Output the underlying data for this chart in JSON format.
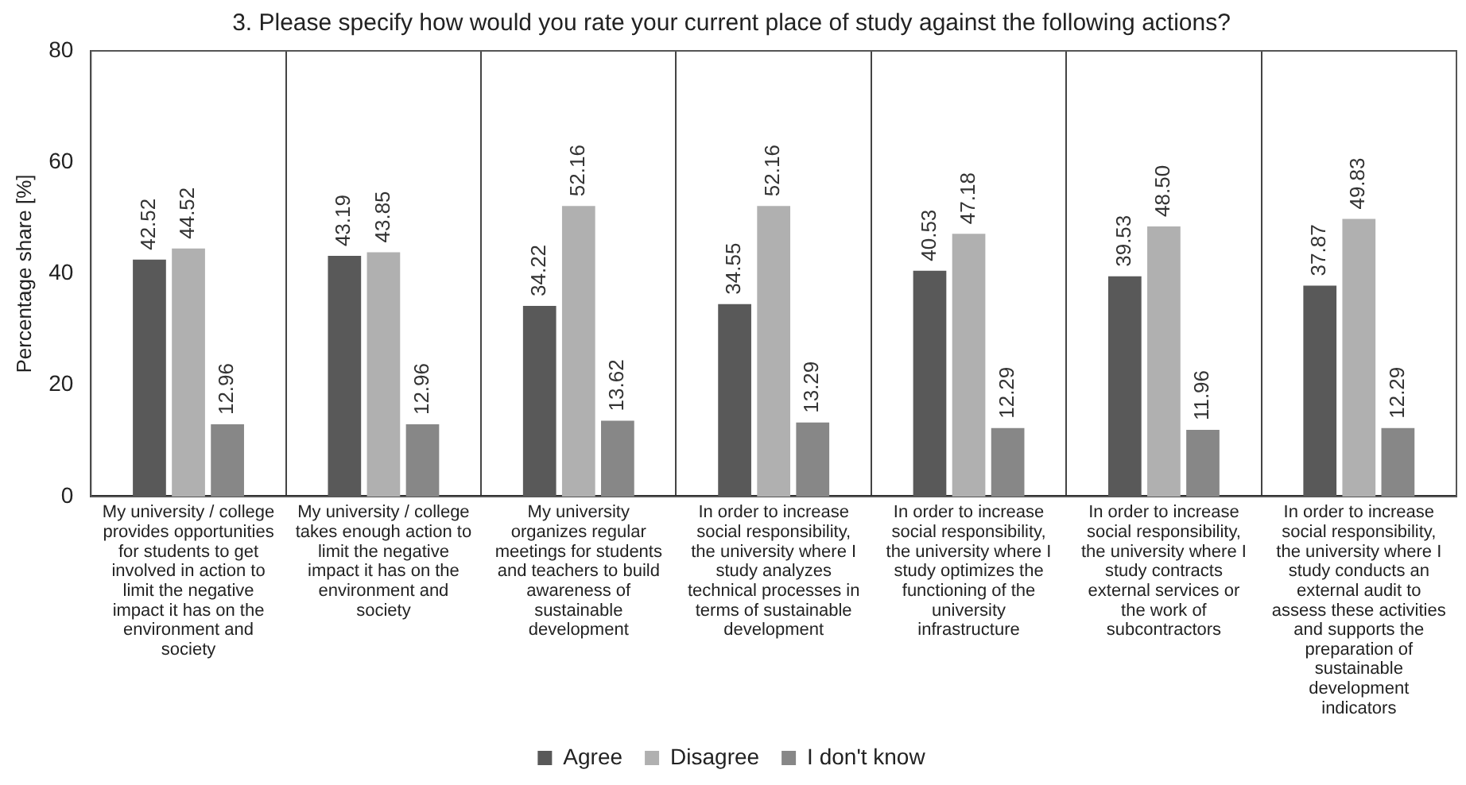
{
  "chart_data": {
    "type": "bar",
    "title": "3. Please specify how would you rate your current place of study against the following actions?",
    "ylabel": "Percentage share [%]",
    "categories": [
      "My university / college provides opportunities for students to get involved in action to limit the negative impact it has on the environment and society",
      "My university / college takes enough action to limit the negative impact it has on the environment and society",
      "My university organizes regular meetings for students and teachers to build awareness of sustainable development",
      "In order to increase social responsibility, the university where I study analyzes technical processes in terms of sustainable development",
      "In order to increase social responsibility, the university where I study optimizes the functioning of the university infrastructure",
      "In order to increase social responsibility, the university where I study contracts external services or the work of subcontractors",
      "In order to increase social responsibility, the university where I study conducts an external audit to assess these activities and supports the preparation of sustainable development indicators"
    ],
    "series": [
      {
        "name": "Agree",
        "color": "#595959",
        "values": [
          42.52,
          43.19,
          34.22,
          34.55,
          40.53,
          39.53,
          37.87
        ]
      },
      {
        "name": "Disagree",
        "color": "#b0b0b0",
        "values": [
          44.52,
          43.85,
          52.16,
          52.16,
          47.18,
          48.5,
          49.83
        ]
      },
      {
        "name": "I don't know",
        "color": "#878787",
        "values": [
          12.96,
          12.96,
          13.62,
          13.29,
          12.29,
          11.96,
          12.29
        ]
      }
    ],
    "value_labels": [
      [
        "42.52",
        "43.19",
        "34.22",
        "34.55",
        "40.53",
        "39.53",
        "37.87"
      ],
      [
        "44.52",
        "43.85",
        "52.16",
        "52.16",
        "47.18",
        "48.50",
        "49.83"
      ],
      [
        "12.96",
        "12.96",
        "13.62",
        "13.29",
        "12.29",
        "11.96",
        "12.29"
      ]
    ],
    "ylim": [
      0,
      80
    ],
    "yticks": [
      0,
      20,
      40,
      60,
      80
    ],
    "grid": "x",
    "legend": "bottom"
  }
}
